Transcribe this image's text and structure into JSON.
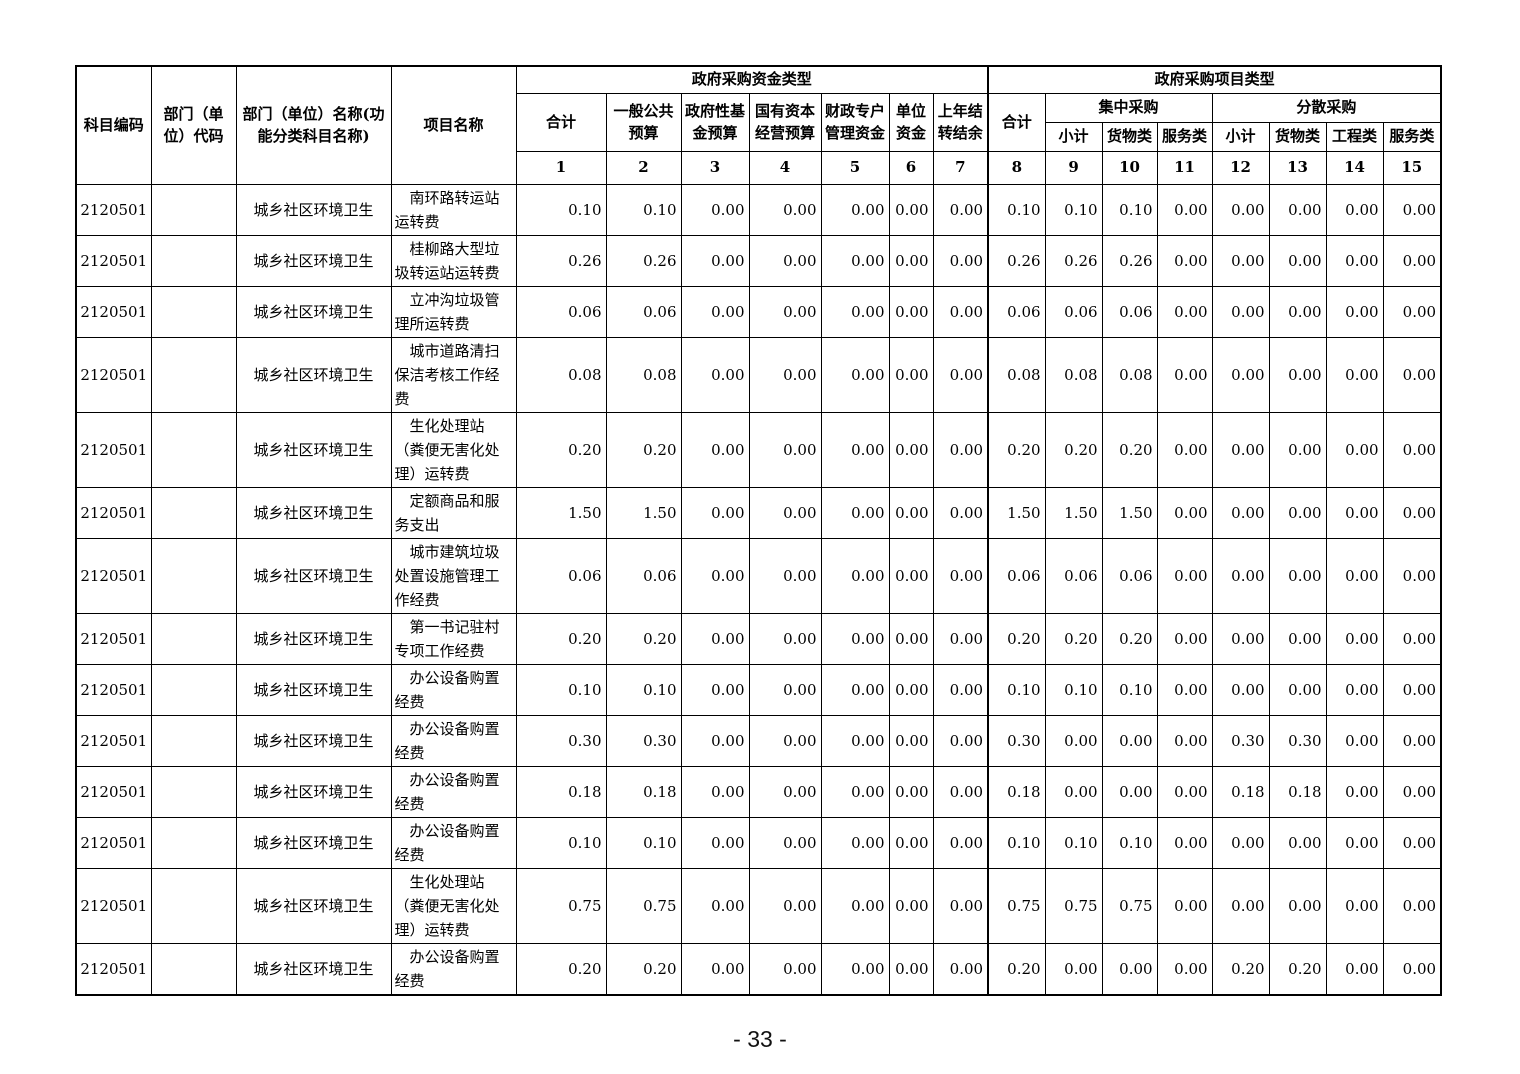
{
  "page": {
    "number_label": "- 33 -"
  },
  "table": {
    "left_headers": {
      "subject_code": "科目编码",
      "dept_code": "部门（单位）代码",
      "dept_name": "部门（单位）名称(功能分类科目名称)",
      "project_name": "项目名称"
    },
    "funding_group": {
      "title": "政府采购资金类型",
      "cols": [
        "合计",
        "一般公共预算",
        "政府性基金预算",
        "国有资本经营预算",
        "财政专户管理资金",
        "单位资金",
        "上年结转结余"
      ]
    },
    "project_group": {
      "title": "政府采购项目类型",
      "total": "合计",
      "centralized": {
        "title": "集中采购",
        "cols": [
          "小计",
          "货物类",
          "服务类"
        ]
      },
      "decentralized": {
        "title": "分散采购",
        "cols": [
          "小计",
          "货物类",
          "工程类",
          "服务类"
        ]
      }
    },
    "col_numbers": [
      "1",
      "2",
      "3",
      "4",
      "5",
      "6",
      "7",
      "8",
      "9",
      "10",
      "11",
      "12",
      "13",
      "14",
      "15"
    ],
    "rows": [
      {
        "code": "2120501",
        "dept_code": "",
        "dept_name": "城乡社区环境卫生",
        "project": "南环路转运站运转费",
        "values": [
          "0.10",
          "0.10",
          "0.00",
          "0.00",
          "0.00",
          "0.00",
          "0.00",
          "0.10",
          "0.10",
          "0.10",
          "0.00",
          "0.00",
          "0.00",
          "0.00",
          "0.00"
        ]
      },
      {
        "code": "2120501",
        "dept_code": "",
        "dept_name": "城乡社区环境卫生",
        "project": "桂柳路大型垃圾转运站运转费",
        "values": [
          "0.26",
          "0.26",
          "0.00",
          "0.00",
          "0.00",
          "0.00",
          "0.00",
          "0.26",
          "0.26",
          "0.26",
          "0.00",
          "0.00",
          "0.00",
          "0.00",
          "0.00"
        ]
      },
      {
        "code": "2120501",
        "dept_code": "",
        "dept_name": "城乡社区环境卫生",
        "project": "立冲沟垃圾管理所运转费",
        "values": [
          "0.06",
          "0.06",
          "0.00",
          "0.00",
          "0.00",
          "0.00",
          "0.00",
          "0.06",
          "0.06",
          "0.06",
          "0.00",
          "0.00",
          "0.00",
          "0.00",
          "0.00"
        ]
      },
      {
        "code": "2120501",
        "dept_code": "",
        "dept_name": "城乡社区环境卫生",
        "project": "城市道路清扫保洁考核工作经费",
        "values": [
          "0.08",
          "0.08",
          "0.00",
          "0.00",
          "0.00",
          "0.00",
          "0.00",
          "0.08",
          "0.08",
          "0.08",
          "0.00",
          "0.00",
          "0.00",
          "0.00",
          "0.00"
        ]
      },
      {
        "code": "2120501",
        "dept_code": "",
        "dept_name": "城乡社区环境卫生",
        "project": "生化处理站（粪便无害化处理）运转费",
        "values": [
          "0.20",
          "0.20",
          "0.00",
          "0.00",
          "0.00",
          "0.00",
          "0.00",
          "0.20",
          "0.20",
          "0.20",
          "0.00",
          "0.00",
          "0.00",
          "0.00",
          "0.00"
        ]
      },
      {
        "code": "2120501",
        "dept_code": "",
        "dept_name": "城乡社区环境卫生",
        "project": "定额商品和服务支出",
        "values": [
          "1.50",
          "1.50",
          "0.00",
          "0.00",
          "0.00",
          "0.00",
          "0.00",
          "1.50",
          "1.50",
          "1.50",
          "0.00",
          "0.00",
          "0.00",
          "0.00",
          "0.00"
        ]
      },
      {
        "code": "2120501",
        "dept_code": "",
        "dept_name": "城乡社区环境卫生",
        "project": "城市建筑垃圾处置设施管理工作经费",
        "values": [
          "0.06",
          "0.06",
          "0.00",
          "0.00",
          "0.00",
          "0.00",
          "0.00",
          "0.06",
          "0.06",
          "0.06",
          "0.00",
          "0.00",
          "0.00",
          "0.00",
          "0.00"
        ]
      },
      {
        "code": "2120501",
        "dept_code": "",
        "dept_name": "城乡社区环境卫生",
        "project": "第一书记驻村专项工作经费",
        "values": [
          "0.20",
          "0.20",
          "0.00",
          "0.00",
          "0.00",
          "0.00",
          "0.00",
          "0.20",
          "0.20",
          "0.20",
          "0.00",
          "0.00",
          "0.00",
          "0.00",
          "0.00"
        ]
      },
      {
        "code": "2120501",
        "dept_code": "",
        "dept_name": "城乡社区环境卫生",
        "project": "办公设备购置经费",
        "values": [
          "0.10",
          "0.10",
          "0.00",
          "0.00",
          "0.00",
          "0.00",
          "0.00",
          "0.10",
          "0.10",
          "0.10",
          "0.00",
          "0.00",
          "0.00",
          "0.00",
          "0.00"
        ]
      },
      {
        "code": "2120501",
        "dept_code": "",
        "dept_name": "城乡社区环境卫生",
        "project": "办公设备购置经费",
        "values": [
          "0.30",
          "0.30",
          "0.00",
          "0.00",
          "0.00",
          "0.00",
          "0.00",
          "0.30",
          "0.00",
          "0.00",
          "0.00",
          "0.30",
          "0.30",
          "0.00",
          "0.00"
        ]
      },
      {
        "code": "2120501",
        "dept_code": "",
        "dept_name": "城乡社区环境卫生",
        "project": "办公设备购置经费",
        "values": [
          "0.18",
          "0.18",
          "0.00",
          "0.00",
          "0.00",
          "0.00",
          "0.00",
          "0.18",
          "0.00",
          "0.00",
          "0.00",
          "0.18",
          "0.18",
          "0.00",
          "0.00"
        ]
      },
      {
        "code": "2120501",
        "dept_code": "",
        "dept_name": "城乡社区环境卫生",
        "project": "办公设备购置经费",
        "values": [
          "0.10",
          "0.10",
          "0.00",
          "0.00",
          "0.00",
          "0.00",
          "0.00",
          "0.10",
          "0.10",
          "0.10",
          "0.00",
          "0.00",
          "0.00",
          "0.00",
          "0.00"
        ]
      },
      {
        "code": "2120501",
        "dept_code": "",
        "dept_name": "城乡社区环境卫生",
        "project": "生化处理站（粪便无害化处理）运转费",
        "values": [
          "0.75",
          "0.75",
          "0.00",
          "0.00",
          "0.00",
          "0.00",
          "0.00",
          "0.75",
          "0.75",
          "0.75",
          "0.00",
          "0.00",
          "0.00",
          "0.00",
          "0.00"
        ]
      },
      {
        "code": "2120501",
        "dept_code": "",
        "dept_name": "城乡社区环境卫生",
        "project": "办公设备购置经费",
        "values": [
          "0.20",
          "0.20",
          "0.00",
          "0.00",
          "0.00",
          "0.00",
          "0.00",
          "0.20",
          "0.00",
          "0.00",
          "0.00",
          "0.20",
          "0.20",
          "0.00",
          "0.00"
        ]
      }
    ]
  }
}
